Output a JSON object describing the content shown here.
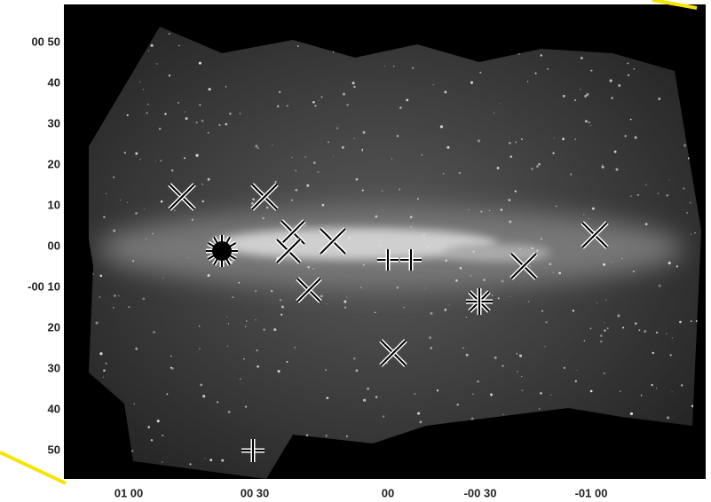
{
  "y_axis_labels": [
    "00 50",
    "40",
    "30",
    "20",
    "10",
    "00",
    "-00 10",
    "20",
    "30",
    "40",
    "50"
  ],
  "x_axis_labels": [
    "01 00",
    "00 30",
    "00",
    "-00 30",
    "-01 00"
  ]
}
